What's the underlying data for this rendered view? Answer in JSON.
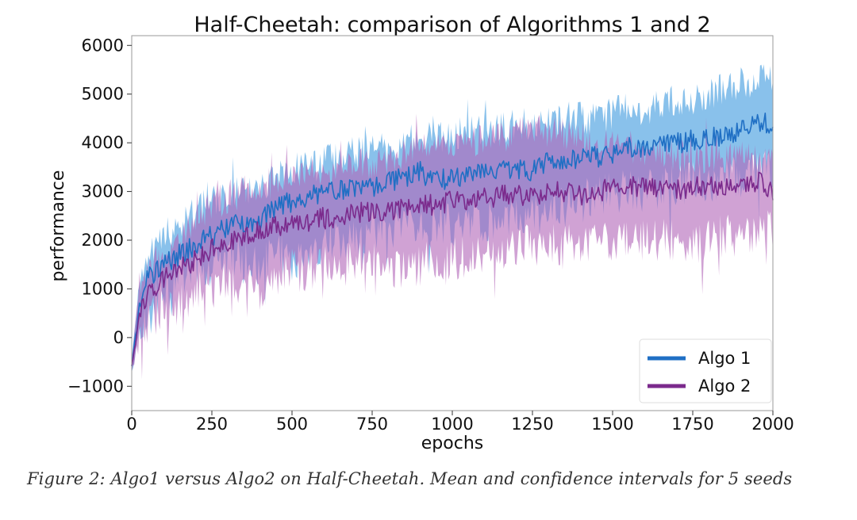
{
  "chart_data": {
    "type": "line",
    "title": "Half-Cheetah: comparison of Algorithms 1 and 2",
    "xlabel": "epochs",
    "ylabel": "performance",
    "xlim": [
      0,
      2000
    ],
    "ylim": [
      -1500,
      6200
    ],
    "x_ticks": [
      0,
      250,
      500,
      750,
      1000,
      1250,
      1500,
      1750,
      2000
    ],
    "x_tick_labels": [
      "0",
      "250",
      "500",
      "750",
      "1000",
      "1250",
      "1500",
      "1750",
      "2000"
    ],
    "y_ticks": [
      -1000,
      0,
      1000,
      2000,
      3000,
      4000,
      5000,
      6000
    ],
    "y_tick_labels": [
      "−1000",
      "0",
      "1000",
      "2000",
      "3000",
      "4000",
      "5000",
      "6000"
    ],
    "legend_position": "lower-right",
    "grid": false,
    "series": [
      {
        "name": "Algo 1",
        "line_color": "#1f6fc4",
        "band_color": "#4a9fe0",
        "x": [
          0,
          25,
          50,
          100,
          150,
          200,
          250,
          300,
          350,
          400,
          450,
          500,
          550,
          600,
          650,
          700,
          750,
          800,
          850,
          900,
          950,
          1000,
          1050,
          1100,
          1150,
          1200,
          1250,
          1300,
          1350,
          1400,
          1450,
          1500,
          1550,
          1600,
          1650,
          1700,
          1750,
          1800,
          1850,
          1900,
          1950,
          2000
        ],
        "mean": [
          -600,
          700,
          1200,
          1500,
          1700,
          1900,
          2100,
          2250,
          2350,
          2350,
          2700,
          2800,
          2900,
          3000,
          3000,
          3050,
          3100,
          3200,
          3300,
          3400,
          3200,
          3300,
          3350,
          3400,
          3450,
          3500,
          3400,
          3600,
          3600,
          3700,
          3700,
          3800,
          3900,
          3900,
          3950,
          4000,
          4050,
          4100,
          4150,
          4300,
          4400,
          4400
        ],
        "lower": [
          -700,
          100,
          600,
          1000,
          1200,
          1400,
          1500,
          1700,
          1700,
          1400,
          1900,
          1500,
          1600,
          2000,
          2000,
          2100,
          2200,
          2200,
          2300,
          2300,
          2400,
          2300,
          2400,
          2400,
          2500,
          2500,
          2500,
          2600,
          2700,
          2800,
          2900,
          3000,
          3000,
          3000,
          3100,
          3100,
          3200,
          3200,
          3300,
          3300,
          3400,
          3500
        ],
        "upper": [
          -400,
          1200,
          1700,
          2100,
          2300,
          2600,
          2800,
          2900,
          3000,
          3100,
          3300,
          3500,
          3500,
          3600,
          3700,
          3800,
          3900,
          3900,
          4000,
          4100,
          4100,
          4200,
          4250,
          4300,
          4300,
          4350,
          4400,
          4400,
          4500,
          4500,
          4500,
          4600,
          4700,
          4700,
          4800,
          4900,
          4900,
          5000,
          5100,
          5200,
          5300,
          5300
        ]
      },
      {
        "name": "Algo 2",
        "line_color": "#7b2a8c",
        "band_color": "#b064b8",
        "x": [
          0,
          25,
          50,
          100,
          150,
          200,
          250,
          300,
          350,
          400,
          450,
          500,
          550,
          600,
          650,
          700,
          750,
          800,
          850,
          900,
          950,
          1000,
          1050,
          1100,
          1150,
          1200,
          1250,
          1300,
          1350,
          1400,
          1450,
          1500,
          1550,
          1600,
          1650,
          1700,
          1750,
          1800,
          1850,
          1900,
          1950,
          2000
        ],
        "mean": [
          -600,
          500,
          900,
          1200,
          1400,
          1600,
          1800,
          2000,
          2100,
          2200,
          2300,
          2350,
          2400,
          2450,
          2500,
          2550,
          2600,
          2600,
          2650,
          2700,
          2750,
          2800,
          2800,
          2850,
          2900,
          2950,
          2900,
          3000,
          3000,
          2900,
          3000,
          3050,
          3100,
          3100,
          3100,
          3050,
          3100,
          3100,
          3150,
          3200,
          3200,
          3000
        ],
        "lower": [
          -700,
          0,
          300,
          600,
          700,
          900,
          1000,
          1200,
          1100,
          900,
          1300,
          1400,
          1400,
          1500,
          1500,
          1600,
          1500,
          1500,
          1400,
          1500,
          1600,
          1600,
          1700,
          1800,
          1800,
          1900,
          1900,
          1900,
          1900,
          1900,
          2000,
          2000,
          2000,
          2000,
          2000,
          2000,
          2000,
          2000,
          2100,
          2100,
          2100,
          2200
        ],
        "upper": [
          -400,
          1000,
          1400,
          1800,
          2100,
          2400,
          2700,
          2900,
          3000,
          3100,
          3200,
          3300,
          3400,
          3450,
          3500,
          3550,
          3600,
          3700,
          3800,
          3900,
          3900,
          4000,
          4000,
          4050,
          4100,
          4200,
          4300,
          4250,
          4200,
          4100,
          4050,
          3900,
          3850,
          3800,
          3800,
          3750,
          3700,
          3700,
          3700,
          3700,
          3700,
          3700
        ]
      }
    ]
  },
  "caption": "Figure 2: Algo1 versus Algo2 on Half-Cheetah. Mean and confidence intervals for 5 seeds"
}
